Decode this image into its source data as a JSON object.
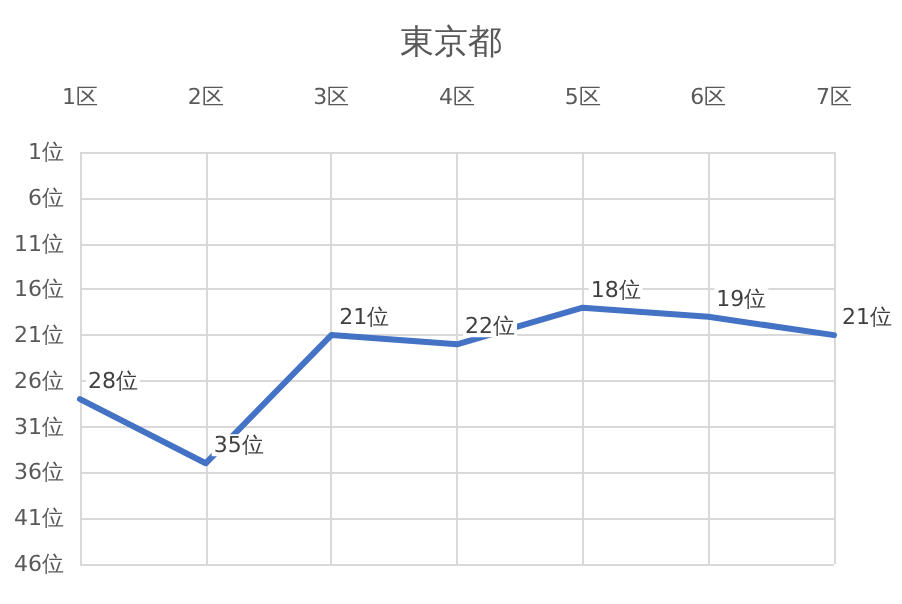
{
  "chart_data": {
    "type": "line",
    "title": "東京都",
    "categories": [
      "1区",
      "2区",
      "3区",
      "4区",
      "5区",
      "6区",
      "7区"
    ],
    "series": [
      {
        "color": "#4472c4",
        "values": [
          28,
          35,
          21,
          22,
          18,
          19,
          21
        ],
        "value_labels": [
          "28位",
          "35位",
          "21位",
          "22位",
          "18位",
          "19位",
          "21位"
        ]
      }
    ],
    "ylim": [
      46,
      1
    ],
    "yticks": [
      {
        "value": 1,
        "label": "1位"
      },
      {
        "value": 6,
        "label": "6位"
      },
      {
        "value": 11,
        "label": "11位"
      },
      {
        "value": 16,
        "label": "16位"
      },
      {
        "value": 21,
        "label": "21位"
      },
      {
        "value": 26,
        "label": "26位"
      },
      {
        "value": 31,
        "label": "31位"
      },
      {
        "value": 36,
        "label": "36位"
      },
      {
        "value": 41,
        "label": "41位"
      },
      {
        "value": 46,
        "label": "46位"
      }
    ],
    "grid": true,
    "marker": "none",
    "line_style": "solid"
  }
}
